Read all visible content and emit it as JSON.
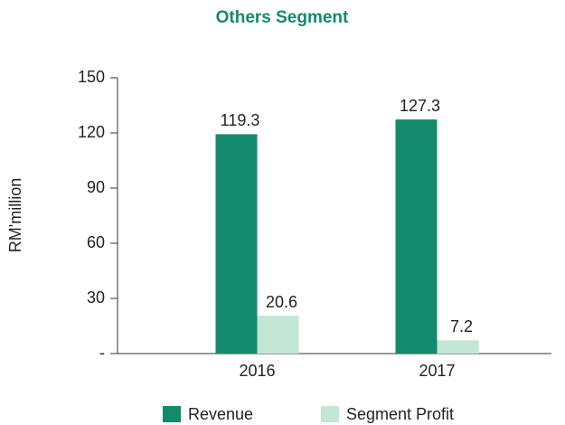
{
  "chart_data": {
    "type": "bar",
    "title": "Others Segment",
    "y_label": "RM'million",
    "categories": [
      "2016",
      "2017"
    ],
    "series": [
      {
        "name": "Revenue",
        "color": "#138a6b",
        "values": [
          119.3,
          127.3
        ]
      },
      {
        "name": "Segment Profit",
        "color": "#c3e6d5",
        "values": [
          20.6,
          7.2
        ]
      }
    ],
    "ylim": [
      0,
      150
    ],
    "yticks": [
      {
        "value": 0,
        "label": "-"
      },
      30,
      60,
      90,
      120,
      150
    ],
    "grid": false
  }
}
